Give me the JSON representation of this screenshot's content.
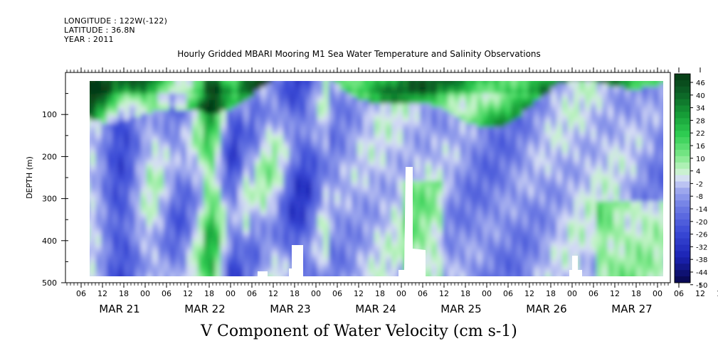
{
  "header": {
    "longitude": "LONGITUDE : 122W(-122)",
    "latitude": "LATITUDE : 36.8N",
    "year": "YEAR : 2011"
  },
  "chart_data": {
    "type": "heatmap",
    "title": "Hourly Gridded MBARI Mooring M1 Sea Water Temperature and Salinity Observations",
    "xlabel": "V Component of Water Velocity (cm s-1)",
    "ylabel": "DEPTH (m)",
    "ylim": [
      500,
      0
    ],
    "y_ticks": [
      100,
      200,
      300,
      400,
      500
    ],
    "y_tick_labels": [
      "100",
      "200",
      "300",
      "400",
      "500"
    ],
    "x_hour_ticks": [
      "06",
      "12",
      "18",
      "00",
      "06",
      "12",
      "18",
      "00",
      "06",
      "12",
      "18",
      "00",
      "06",
      "12",
      "18",
      "00",
      "06",
      "12",
      "18",
      "00",
      "06",
      "12",
      "18",
      "00",
      "06",
      "12",
      "18",
      "00",
      "06",
      "12",
      "18",
      "00"
    ],
    "x_date_labels": [
      "MAR 21",
      "MAR 22",
      "MAR 23",
      "MAR 24",
      "MAR 25",
      "MAR 26",
      "MAR 27"
    ],
    "colorbar": {
      "labels": [
        "46",
        "40",
        "34",
        "28",
        "22",
        "16",
        "10",
        "4",
        "-2",
        "-8",
        "-14",
        "-20",
        "-26",
        "-32",
        "-38",
        "-44",
        "-50"
      ],
      "range": [
        -50,
        49
      ],
      "colors": {
        "strong_pos": "#0a3d1a",
        "pos": "#1faa3c",
        "weak_pos": "#9ef0a8",
        "zero": "#dde4f4",
        "weak_neg": "#a6b0ec",
        "neg": "#4858d8",
        "strong_neg": "#0a0a6a"
      }
    },
    "data_depth_range": [
      20,
      485
    ],
    "grid": false,
    "legend": "right"
  }
}
